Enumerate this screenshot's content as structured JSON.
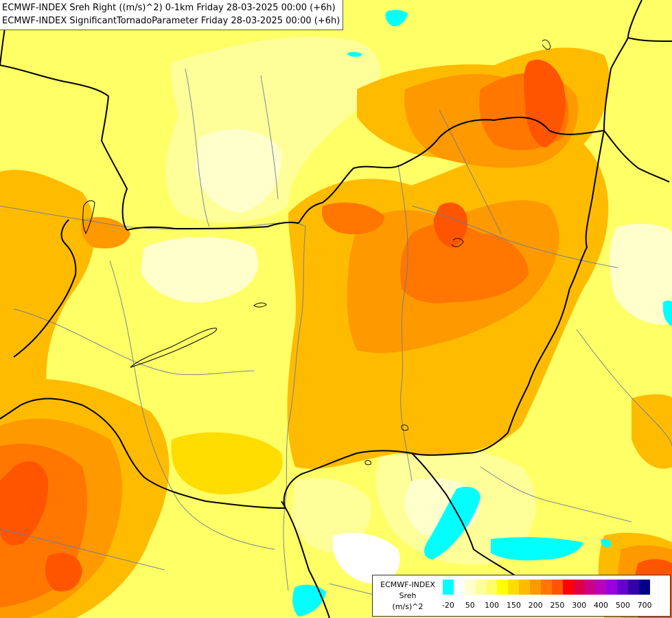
{
  "title": {
    "line1": "ECMWF-INDEX Sreh Right ((m/s)^2) 0-1km Friday 28-03-2025 00:00 (+6h)",
    "line2": "ECMWF-INDEX SignificantTornadoParameter Friday 28-03-2025 00:00 (+6h)"
  },
  "legend": {
    "source": "ECMWF-INDEX",
    "parameter": "Sreh",
    "unit": "(m/s)^2",
    "colors": [
      "#00ffff",
      "#ffffff",
      "#ffffcc",
      "#ffff99",
      "#ffff66",
      "#ffff00",
      "#ffdd00",
      "#ffbb00",
      "#ff9900",
      "#ff7700",
      "#ff5500",
      "#ff0000",
      "#dd0044",
      "#cc0088",
      "#bb00bb",
      "#9900dd",
      "#6600cc",
      "#3300aa",
      "#000088"
    ],
    "ticks": [
      {
        "label": "-20",
        "pos": 0
      },
      {
        "label": "50",
        "pos": 2
      },
      {
        "label": "100",
        "pos": 4
      },
      {
        "label": "150",
        "pos": 6
      },
      {
        "label": "200",
        "pos": 8
      },
      {
        "label": "250",
        "pos": 10
      },
      {
        "label": "300",
        "pos": 12
      },
      {
        "label": "400",
        "pos": 14
      },
      {
        "label": "500",
        "pos": 16
      },
      {
        "label": "700",
        "pos": 18
      }
    ]
  }
}
